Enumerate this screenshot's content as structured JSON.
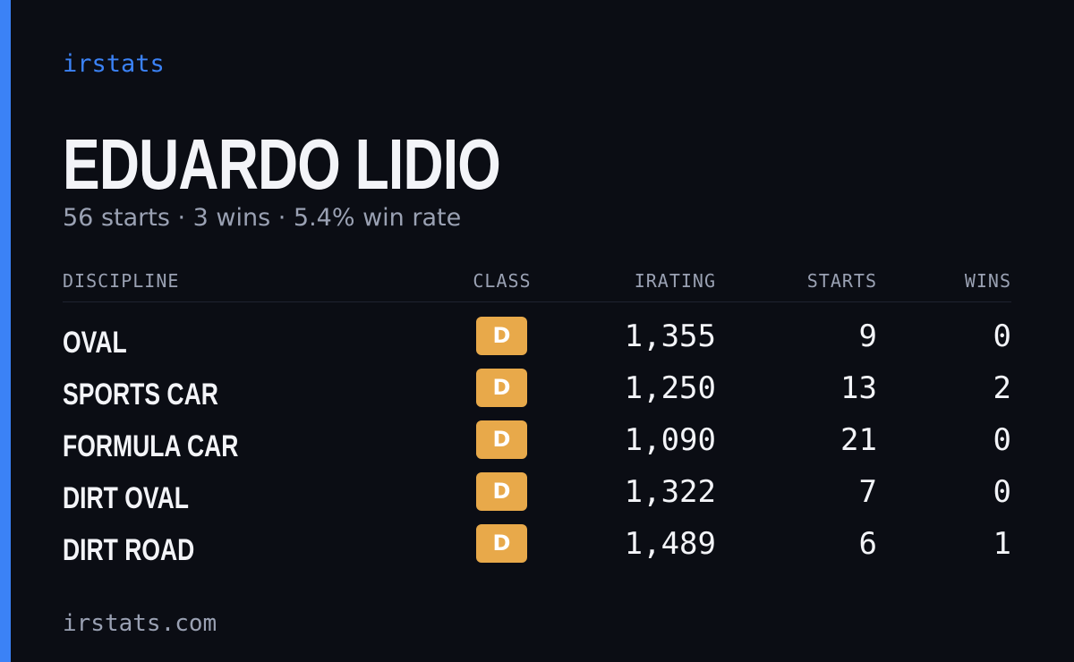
{
  "brand": "irstats",
  "profile": {
    "name": "EDUARDO LIDIO",
    "summary": "56 starts · 3 wins · 5.4% win rate"
  },
  "table": {
    "headers": [
      "DISCIPLINE",
      "CLASS",
      "IRATING",
      "STARTS",
      "WINS"
    ],
    "rows": [
      [
        "OVAL",
        "D",
        "1,355",
        "9",
        "0"
      ],
      [
        "SPORTS CAR",
        "D",
        "1,250",
        "13",
        "2"
      ],
      [
        "FORMULA CAR",
        "D",
        "1,090",
        "21",
        "0"
      ],
      [
        "DIRT OVAL",
        "D",
        "1,322",
        "7",
        "0"
      ],
      [
        "DIRT ROAD",
        "D",
        "1,489",
        "6",
        "1"
      ]
    ]
  },
  "footer": {
    "url": "irstats.com"
  }
}
